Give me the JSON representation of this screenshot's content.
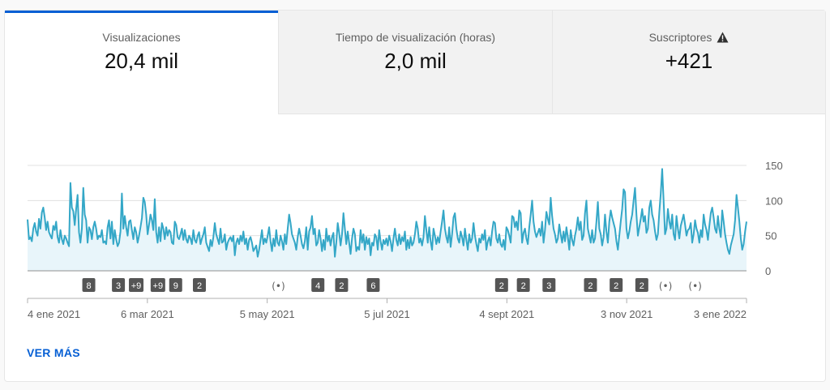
{
  "tabs": [
    {
      "label": "Visualizaciones",
      "value": "20,4 mil",
      "active": true
    },
    {
      "label": "Tiempo de visualización (horas)",
      "value": "2,0 mil",
      "active": false
    },
    {
      "label": "Suscriptores",
      "value": "+421",
      "active": false,
      "icon": "warning-icon"
    }
  ],
  "see_more_label": "VER MÁS",
  "colors": {
    "line": "#34a7c7",
    "fill": "#e8f5fa",
    "accent": "#065fd4",
    "marker": "#555555"
  },
  "chart_data": {
    "type": "area",
    "x_start": "2021-01-04",
    "x_end": "2022-01-03",
    "xlabels": [
      "4 ene 2021",
      "6 mar 2021",
      "5 may 2021",
      "5 jul 2021",
      "4 sept 2021",
      "3 nov 2021",
      "3 ene 2022"
    ],
    "yticks": [
      0,
      50,
      100,
      150
    ],
    "ylim": [
      0,
      150
    ],
    "grid": true,
    "series": [
      {
        "values": [
          73,
          45,
          48,
          42,
          60,
          68,
          56,
          50,
          74,
          60,
          83,
          90,
          76,
          58,
          70,
          55,
          50,
          46,
          64,
          58,
          70,
          48,
          40,
          58,
          45,
          38,
          50,
          46,
          40,
          35,
          125,
          90,
          85,
          65,
          88,
          108,
          55,
          40,
          60,
          118,
          80,
          72,
          40,
          62,
          58,
          45,
          62,
          70,
          60,
          45,
          50,
          48,
          58,
          40,
          42,
          38,
          62,
          72,
          46,
          70,
          38,
          58,
          45,
          35,
          40,
          56,
          110,
          60,
          78,
          62,
          50,
          70,
          72,
          58,
          45,
          62,
          55,
          40,
          50,
          62,
          75,
          104,
          98,
          80,
          52,
          66,
          80,
          72,
          58,
          102,
          55,
          40,
          62,
          42,
          68,
          60,
          45,
          62,
          50,
          58,
          55,
          40,
          38,
          70,
          65,
          48,
          45,
          52,
          60,
          44,
          58,
          45,
          40,
          50,
          46,
          38,
          58,
          44,
          40,
          50,
          55,
          38,
          46,
          52,
          62,
          40,
          34,
          28,
          44,
          35,
          48,
          68,
          52,
          45,
          38,
          60,
          40,
          42,
          52,
          30,
          40,
          45,
          48,
          42,
          50,
          22,
          40,
          46,
          38,
          50,
          42,
          56,
          38,
          46,
          30,
          44,
          48,
          40,
          28,
          32,
          36,
          20,
          30,
          44,
          58,
          38,
          46,
          40,
          50,
          62,
          42,
          28,
          46,
          35,
          58,
          40,
          36,
          50,
          42,
          30,
          52,
          38,
          60,
          80,
          68,
          52,
          46,
          40,
          30,
          48,
          60,
          50,
          38,
          32,
          42,
          62,
          30,
          56,
          62,
          78,
          52,
          60,
          36,
          40,
          58,
          46,
          28,
          44,
          30,
          60,
          42,
          50,
          36,
          48,
          54,
          20,
          40,
          68,
          54,
          36,
          52,
          82,
          60,
          38,
          56,
          40,
          24,
          46,
          60,
          52,
          28,
          34,
          30,
          58,
          40,
          52,
          30,
          48,
          38,
          46,
          22,
          40,
          36,
          52,
          48,
          30,
          58,
          42,
          30,
          44,
          38,
          46,
          36,
          50,
          42,
          28,
          46,
          60,
          44,
          36,
          52,
          38,
          48,
          42,
          56,
          30,
          44,
          32,
          48,
          36,
          40,
          52,
          70,
          60,
          40,
          46,
          36,
          48,
          78,
          58,
          40,
          62,
          42,
          30,
          60,
          50,
          38,
          48,
          40,
          56,
          70,
          86,
          60,
          48,
          40,
          62,
          34,
          52,
          76,
          82,
          60,
          46,
          40,
          56,
          48,
          36,
          60,
          44,
          30,
          52,
          40,
          46,
          68,
          50,
          38,
          28,
          46,
          40,
          52,
          44,
          58,
          30,
          42,
          48,
          36,
          56,
          70,
          68,
          46,
          40,
          52,
          38,
          34,
          44,
          30,
          62,
          58,
          50,
          40,
          78,
          76,
          62,
          70,
          58,
          86,
          82,
          40,
          54,
          60,
          46,
          38,
          62,
          80,
          100,
          70,
          56,
          48,
          54,
          60,
          50,
          70,
          40,
          58,
          84,
          74,
          66,
          104,
          78,
          60,
          52,
          40,
          46,
          66,
          52,
          40,
          56,
          42,
          62,
          48,
          30,
          58,
          44,
          36,
          50,
          60,
          76,
          58,
          70,
          44,
          50,
          82,
          100,
          60,
          50,
          40,
          58,
          40,
          46,
          70,
          98,
          60,
          52,
          36,
          48,
          80,
          56,
          40,
          70,
          86,
          76,
          68,
          60,
          42,
          30,
          50,
          70,
          88,
          116,
          112,
          60,
          46,
          56,
          70,
          80,
          100,
          118,
          80,
          50,
          62,
          74,
          88,
          70,
          78,
          54,
          60,
          90,
          100,
          80,
          72,
          56,
          44,
          52,
          84,
          110,
          145,
          100,
          52,
          60,
          88,
          70,
          60,
          80,
          52,
          44,
          78,
          60,
          46,
          64,
          72,
          80,
          66,
          50,
          58,
          60,
          68,
          40,
          52,
          72,
          60,
          54,
          40,
          58,
          48,
          80,
          66,
          58,
          44,
          64,
          82,
          90,
          76,
          60,
          54,
          78,
          60,
          48,
          86,
          70,
          52,
          40,
          30,
          24,
          36,
          44,
          52,
          72,
          108,
          90,
          70,
          46,
          30,
          38,
          56,
          70
        ]
      }
    ],
    "markers": [
      {
        "label": "8",
        "date": "2021-02-04"
      },
      {
        "label": "3",
        "date": "2021-02-19"
      },
      {
        "label": "+9",
        "date": "2021-02-28"
      },
      {
        "label": "+9",
        "date": "2021-03-11"
      },
      {
        "label": "9",
        "date": "2021-03-20"
      },
      {
        "label": "2",
        "date": "2021-04-01"
      },
      {
        "label": "(•)",
        "date": "2021-05-11"
      },
      {
        "label": "4",
        "date": "2021-05-31"
      },
      {
        "label": "2",
        "date": "2021-06-12"
      },
      {
        "label": "6",
        "date": "2021-06-28"
      },
      {
        "label": "2",
        "date": "2021-09-01"
      },
      {
        "label": "2",
        "date": "2021-09-12"
      },
      {
        "label": "3",
        "date": "2021-09-25"
      },
      {
        "label": "2",
        "date": "2021-10-16"
      },
      {
        "label": "2",
        "date": "2021-10-29"
      },
      {
        "label": "2",
        "date": "2021-11-11"
      },
      {
        "label": "(•)",
        "date": "2021-11-23"
      },
      {
        "label": "(•)",
        "date": "2021-12-08"
      }
    ]
  }
}
